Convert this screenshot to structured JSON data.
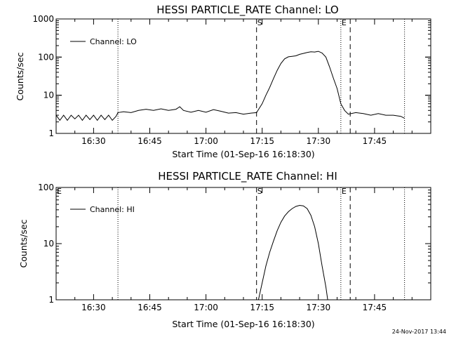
{
  "footer": {
    "timestamp": "24-Nov-2017 13:44"
  },
  "colors": {
    "line": "#000000",
    "background": "#ffffff"
  },
  "chart_data": [
    {
      "type": "line",
      "title": "HESSI PARTICLE_RATE Channel: LO",
      "xlabel": "Start Time (01-Sep-16 16:18:30)",
      "ylabel": "Counts/sec",
      "yscale": "log",
      "ylim": [
        1,
        1000
      ],
      "y_ticks": [
        {
          "v": 1,
          "label": "1"
        },
        {
          "v": 10,
          "label": "10"
        },
        {
          "v": 100,
          "label": "100"
        },
        {
          "v": 1000,
          "label": "1000"
        }
      ],
      "xlim": [
        "16:20",
        "18:00"
      ],
      "x_ticks": [
        "16:30",
        "16:45",
        "17:00",
        "17:15",
        "17:30",
        "17:45"
      ],
      "legend": {
        "position": "top-left",
        "entries": [
          "Channel: LO"
        ]
      },
      "event_markers": [
        {
          "time": "17:13.5",
          "label": "S",
          "style": "dashed"
        },
        {
          "time": "17:36.0",
          "label": "E",
          "style": "dotted"
        }
      ],
      "dashed_lines": [
        "17:13.5",
        "17:38.5"
      ],
      "dotted_lines": [
        "16:36.5",
        "17:36.0",
        "17:53.0"
      ],
      "series": [
        {
          "name": "Channel: LO",
          "points": [
            [
              "16:20.0",
              3.0
            ],
            [
              "16:21.0",
              2.2
            ],
            [
              "16:22.0",
              3.0
            ],
            [
              "16:23.0",
              2.2
            ],
            [
              "16:24.0",
              3.0
            ],
            [
              "16:25.0",
              2.4
            ],
            [
              "16:26.0",
              3.0
            ],
            [
              "16:27.0",
              2.2
            ],
            [
              "16:28.0",
              3.0
            ],
            [
              "16:29.0",
              2.3
            ],
            [
              "16:30.0",
              3.0
            ],
            [
              "16:31.0",
              2.2
            ],
            [
              "16:32.0",
              3.0
            ],
            [
              "16:33.0",
              2.3
            ],
            [
              "16:34.0",
              3.0
            ],
            [
              "16:35.0",
              2.2
            ],
            [
              "16:36.0",
              2.8
            ],
            [
              "16:36.5",
              3.5
            ],
            [
              "16:38.0",
              3.7
            ],
            [
              "16:40.0",
              3.5
            ],
            [
              "16:42.0",
              4.0
            ],
            [
              "16:44.0",
              4.3
            ],
            [
              "16:46.0",
              4.0
            ],
            [
              "16:48.0",
              4.4
            ],
            [
              "16:50.0",
              4.0
            ],
            [
              "16:52.0",
              4.3
            ],
            [
              "16:53.0",
              5.0
            ],
            [
              "16:54.0",
              4.0
            ],
            [
              "16:56.0",
              3.6
            ],
            [
              "16:58.0",
              4.0
            ],
            [
              "17:00.0",
              3.6
            ],
            [
              "17:02.0",
              4.2
            ],
            [
              "17:04.0",
              3.8
            ],
            [
              "17:06.0",
              3.4
            ],
            [
              "17:08.0",
              3.5
            ],
            [
              "17:10.0",
              3.2
            ],
            [
              "17:12.0",
              3.4
            ],
            [
              "17:13.5",
              3.5
            ],
            [
              "17:15.0",
              6.0
            ],
            [
              "17:16.0",
              10.0
            ],
            [
              "17:17.0",
              16.0
            ],
            [
              "17:18.0",
              27.0
            ],
            [
              "17:19.0",
              45.0
            ],
            [
              "17:20.0",
              68.0
            ],
            [
              "17:21.0",
              90.0
            ],
            [
              "17:22.0",
              102.0
            ],
            [
              "17:23.0",
              105.0
            ],
            [
              "17:24.0",
              108.0
            ],
            [
              "17:25.0",
              118.0
            ],
            [
              "17:26.0",
              125.0
            ],
            [
              "17:27.0",
              132.0
            ],
            [
              "17:28.0",
              138.0
            ],
            [
              "17:29.0",
              136.0
            ],
            [
              "17:30.0",
              142.0
            ],
            [
              "17:31.0",
              128.0
            ],
            [
              "17:32.0",
              100.0
            ],
            [
              "17:33.0",
              55.0
            ],
            [
              "17:34.0",
              28.0
            ],
            [
              "17:35.0",
              15.0
            ],
            [
              "17:36.0",
              6.0
            ],
            [
              "17:37.0",
              4.0
            ],
            [
              "17:38.0",
              3.2
            ],
            [
              "17:40.0",
              3.5
            ],
            [
              "17:42.0",
              3.3
            ],
            [
              "17:44.0",
              3.0
            ],
            [
              "17:46.0",
              3.3
            ],
            [
              "17:48.0",
              3.0
            ],
            [
              "17:50.0",
              3.0
            ],
            [
              "17:52.0",
              2.8
            ],
            [
              "17:53.0",
              2.5
            ]
          ]
        }
      ]
    },
    {
      "type": "line",
      "title": "HESSI PARTICLE_RATE Channel: HI",
      "xlabel": "Start Time (01-Sep-16 16:18:30)",
      "ylabel": "Counts/sec",
      "yscale": "log",
      "ylim": [
        1,
        100
      ],
      "y_ticks": [
        {
          "v": 1,
          "label": "1"
        },
        {
          "v": 10,
          "label": "10"
        },
        {
          "v": 100,
          "label": "100"
        }
      ],
      "xlim": [
        "16:20",
        "18:00"
      ],
      "x_ticks": [
        "16:30",
        "16:45",
        "17:00",
        "17:15",
        "17:30",
        "17:45"
      ],
      "legend": {
        "position": "top-left",
        "entries": [
          "Channel: HI"
        ]
      },
      "event_markers": [
        {
          "time": "16:20.0",
          "label": "E",
          "style": "none"
        },
        {
          "time": "17:13.5",
          "label": "S",
          "style": "dashed"
        },
        {
          "time": "17:36.0",
          "label": "E",
          "style": "dotted"
        }
      ],
      "dashed_lines": [
        "17:13.5",
        "17:38.5"
      ],
      "dotted_lines": [
        "16:36.5",
        "17:36.0",
        "17:53.0"
      ],
      "series": [
        {
          "name": "Channel: HI",
          "points": [
            [
              "17:14.0",
              1.0
            ],
            [
              "17:15.0",
              2.0
            ],
            [
              "17:16.0",
              4.0
            ],
            [
              "17:17.0",
              7.0
            ],
            [
              "17:18.0",
              11.0
            ],
            [
              "17:19.0",
              17.0
            ],
            [
              "17:20.0",
              24.0
            ],
            [
              "17:21.0",
              31.0
            ],
            [
              "17:22.0",
              37.0
            ],
            [
              "17:23.0",
              42.0
            ],
            [
              "17:24.0",
              46.0
            ],
            [
              "17:25.0",
              48.0
            ],
            [
              "17:26.0",
              47.0
            ],
            [
              "17:27.0",
              42.0
            ],
            [
              "17:28.0",
              32.0
            ],
            [
              "17:29.0",
              20.0
            ],
            [
              "17:30.0",
              10.0
            ],
            [
              "17:31.0",
              4.0
            ],
            [
              "17:32.0",
              1.7
            ],
            [
              "17:32.5",
              1.0
            ]
          ]
        }
      ]
    }
  ]
}
